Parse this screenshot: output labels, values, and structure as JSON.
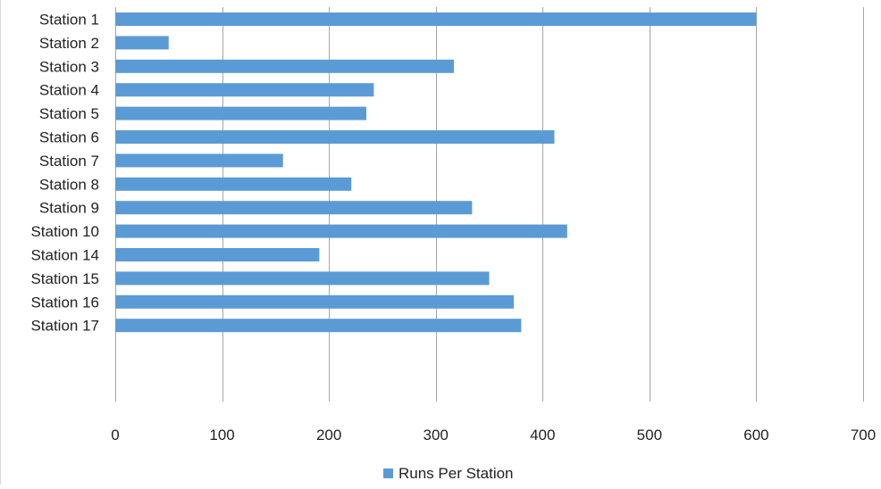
{
  "chart_data": {
    "type": "bar",
    "orientation": "horizontal",
    "categories": [
      "Station 1",
      "Station 2",
      "Station 3",
      "Station 4",
      "Station 5",
      "Station 6",
      "Station 7",
      "Station 8",
      "Station 9",
      "Station 10",
      "Station 14",
      "Station 15",
      "Station 16",
      "Station 17"
    ],
    "series": [
      {
        "name": "Runs Per Station",
        "color": "#5b9bd5",
        "values": [
          600,
          50,
          317,
          242,
          235,
          411,
          157,
          221,
          334,
          423,
          191,
          350,
          373,
          380
        ]
      }
    ],
    "xlim": [
      0,
      700
    ],
    "xticks": [
      0,
      100,
      200,
      300,
      400,
      500,
      600,
      700
    ],
    "title": "",
    "xlabel": "",
    "ylabel": "",
    "grid": "vertical",
    "legend_position": "bottom",
    "gridline_color": "#a6a6a6",
    "axis_color": "#a6a6a6"
  }
}
